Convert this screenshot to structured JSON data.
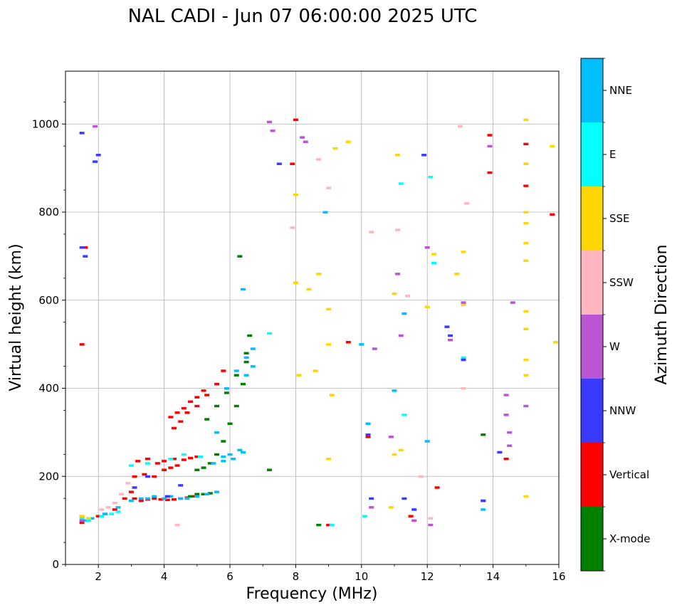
{
  "chart_data": {
    "type": "scatter",
    "title": "NAL CADI - Jun 07 06:00:00 2025 UTC",
    "xlabel": "Frequency (MHz)",
    "ylabel": "Virtual height (km)",
    "xlim": [
      1,
      16
    ],
    "ylim": [
      0,
      1120
    ],
    "xticks": [
      2,
      4,
      6,
      8,
      10,
      12,
      14,
      16
    ],
    "yticks": [
      0,
      200,
      400,
      600,
      800,
      1000
    ],
    "grid": true,
    "colorbar": {
      "label": "Azimuth Direction",
      "entries": [
        {
          "name": "NNE",
          "color": "#00bfff"
        },
        {
          "name": "E",
          "color": "#00ffff"
        },
        {
          "name": "SSE",
          "color": "#ffd700"
        },
        {
          "name": "SSW",
          "color": "#ffb6c1"
        },
        {
          "name": "W",
          "color": "#ba55d3"
        },
        {
          "name": "NNW",
          "color": "#3a3aff"
        },
        {
          "name": "Vertical",
          "color": "#ff0000"
        },
        {
          "name": "X-mode",
          "color": "#008000"
        }
      ]
    },
    "series": [
      {
        "name": "Vertical",
        "x": [
          1.5,
          1.5,
          1.5,
          1.6,
          1.8,
          2.0,
          2.2,
          2.5,
          2.8,
          3.0,
          3.1,
          3.3,
          3.5,
          3.7,
          3.9,
          4.1,
          4.3,
          4.5,
          4.7,
          4.9,
          3.1,
          3.4,
          3.7,
          4.0,
          4.2,
          4.4,
          3.2,
          3.5,
          3.8,
          4.0,
          4.3,
          4.6,
          4.8,
          5.0,
          4.2,
          4.4,
          4.6,
          4.8,
          5.0,
          5.2,
          4.3,
          4.5,
          4.7,
          5.0,
          5.3,
          5.6,
          5.8,
          9.0,
          10.2,
          11.5,
          13.9,
          13.9,
          15.0,
          15.0,
          15.8,
          7.9,
          8.0,
          14.4,
          12.3,
          9.6
        ],
        "y": [
          95,
          110,
          500,
          720,
          105,
          110,
          115,
          125,
          150,
          165,
          150,
          145,
          148,
          150,
          148,
          147,
          148,
          150,
          152,
          155,
          200,
          205,
          200,
          215,
          220,
          225,
          235,
          240,
          230,
          235,
          240,
          238,
          242,
          245,
          335,
          345,
          355,
          370,
          380,
          395,
          310,
          325,
          345,
          360,
          385,
          410,
          440,
          90,
          290,
          110,
          975,
          890,
          955,
          860,
          795,
          910,
          1010,
          240,
          175,
          505
        ]
      },
      {
        "name": "X-mode",
        "x": [
          5.0,
          5.2,
          5.4,
          5.6,
          5.8,
          6.0,
          6.2,
          6.4,
          6.5,
          6.6,
          5.3,
          5.6,
          5.9,
          6.2,
          6.5,
          4.8,
          5.0,
          5.2,
          5.4,
          7.2,
          13.7,
          8.7,
          6.3
        ],
        "y": [
          215,
          220,
          230,
          250,
          280,
          320,
          360,
          410,
          460,
          520,
          330,
          360,
          390,
          430,
          480,
          155,
          160,
          160,
          162,
          215,
          295,
          90,
          700
        ]
      },
      {
        "name": "NNE",
        "x": [
          1.6,
          1.8,
          2.2,
          2.6,
          3.0,
          3.3,
          3.5,
          3.7,
          4.0,
          4.2,
          4.5,
          4.7,
          5.0,
          5.3,
          5.6,
          5.8,
          6.0,
          6.3,
          6.5,
          6.7,
          5.5,
          5.8,
          6.1,
          6.4,
          5.6,
          5.9,
          6.2,
          6.5,
          6.7,
          8.9,
          10.2,
          11.0,
          11.3,
          13.7,
          12.0,
          10.0,
          6.4
        ],
        "y": [
          100,
          105,
          115,
          130,
          145,
          150,
          150,
          155,
          150,
          155,
          150,
          150,
          155,
          160,
          165,
          245,
          250,
          260,
          430,
          450,
          230,
          235,
          240,
          255,
          300,
          400,
          440,
          470,
          490,
          800,
          320,
          395,
          570,
          125,
          280,
          500,
          625
        ]
      },
      {
        "name": "E",
        "x": [
          1.5,
          1.7,
          2.1,
          2.4,
          2.6,
          3.0,
          3.5,
          4.2,
          4.6,
          5.1,
          7.2,
          9.1,
          10.1,
          11.2,
          11.3,
          12.1,
          13.1,
          12.2
        ],
        "y": [
          105,
          100,
          110,
          115,
          120,
          225,
          230,
          240,
          250,
          245,
          525,
          90,
          110,
          865,
          340,
          880,
          470,
          685
        ]
      },
      {
        "name": "SSE",
        "x": [
          1.5,
          1.7,
          8.0,
          8.6,
          9.0,
          9.2,
          9.6,
          8.4,
          9.0,
          11.0,
          11.2,
          12.0,
          12.2,
          12.9,
          13.1,
          13.1,
          15.0,
          15.0,
          15.0,
          15.0,
          15.0,
          15.0,
          15.0,
          15.0,
          15.0,
          15.0,
          15.0,
          15.8,
          15.9,
          8.0,
          8.1,
          8.7,
          9.0,
          9.1,
          10.9,
          11.1,
          11.0
        ],
        "y": [
          110,
          105,
          840,
          440,
          500,
          945,
          960,
          625,
          240,
          615,
          260,
          585,
          705,
          660,
          710,
          590,
          1010,
          910,
          800,
          775,
          730,
          690,
          575,
          535,
          465,
          430,
          155,
          950,
          505,
          640,
          430,
          660,
          580,
          385,
          130,
          930,
          250
        ]
      },
      {
        "name": "SSW",
        "x": [
          2.1,
          2.3,
          2.5,
          2.7,
          2.9,
          4.4,
          8.7,
          9.0,
          10.3,
          11.1,
          11.4,
          12.1,
          13.0,
          13.2,
          13.1,
          7.9,
          11.8
        ],
        "y": [
          125,
          130,
          140,
          160,
          185,
          90,
          920,
          855,
          755,
          760,
          610,
          105,
          995,
          820,
          400,
          765,
          200
        ]
      },
      {
        "name": "W",
        "x": [
          1.5,
          1.9,
          7.2,
          7.3,
          8.2,
          8.3,
          10.4,
          10.9,
          11.1,
          11.2,
          12.0,
          12.7,
          13.9,
          14.4,
          14.4,
          14.5,
          14.5,
          14.6,
          15.0,
          13.7,
          13.1,
          10.3,
          11.6,
          12.1
        ],
        "y": [
          100,
          995,
          1005,
          985,
          970,
          960,
          490,
          290,
          660,
          520,
          720,
          510,
          950,
          385,
          340,
          300,
          270,
          595,
          360,
          145,
          595,
          130,
          100,
          90
        ]
      },
      {
        "name": "NNW",
        "x": [
          1.5,
          1.5,
          1.6,
          1.9,
          2.0,
          3.1,
          3.5,
          4.1,
          4.5,
          7.5,
          10.2,
          10.3,
          11.3,
          11.6,
          11.9,
          12.6,
          12.7,
          13.1,
          14.2,
          13.7
        ],
        "y": [
          980,
          720,
          700,
          915,
          930,
          175,
          200,
          155,
          180,
          910,
          295,
          150,
          150,
          125,
          930,
          540,
          520,
          465,
          255,
          145
        ]
      }
    ]
  }
}
